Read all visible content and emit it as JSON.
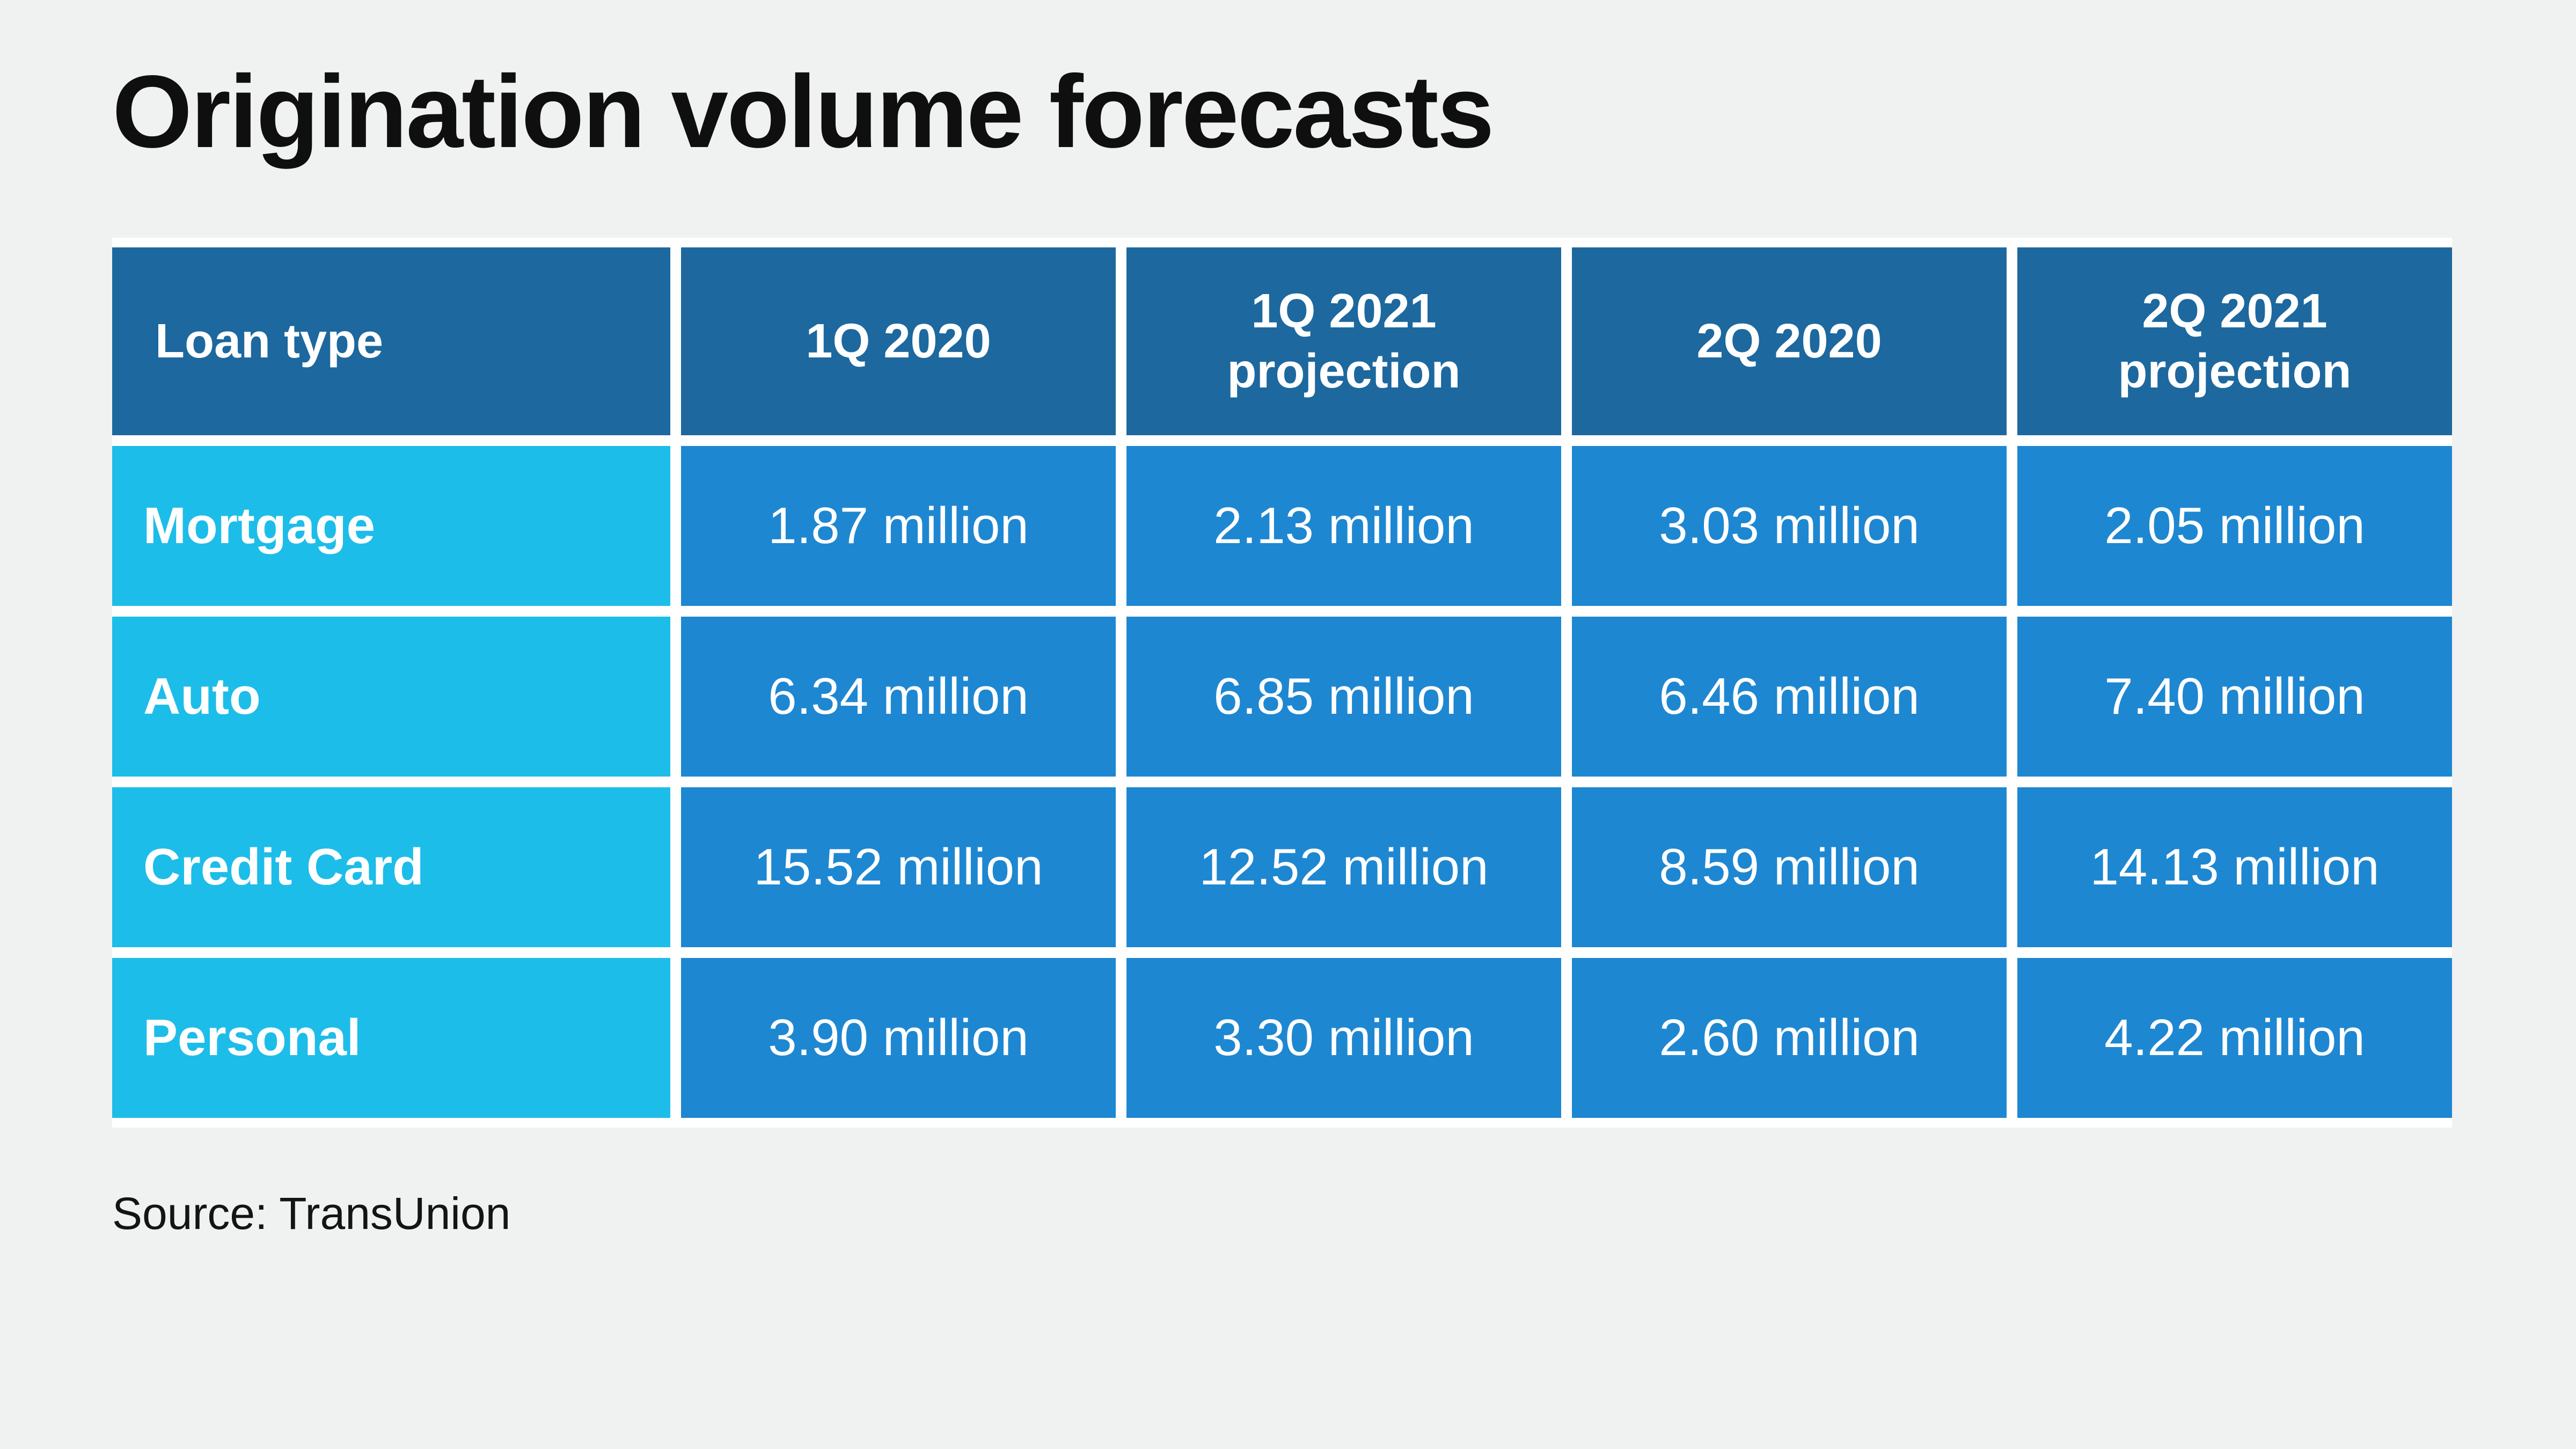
{
  "page": {
    "title": "Origination volume forecasts",
    "source_note": "Source: TransUnion"
  },
  "colors": {
    "background": "#F0F1F1",
    "header_blue": "#1D689E",
    "row_label_cyan": "#1DBDE9",
    "data_cell_blue": "#1E87D1",
    "cell_text": "#FFFFFF",
    "title_text": "#0F0F0F",
    "gutter": "#FFFFFF"
  },
  "chart_data": {
    "type": "table",
    "title": "Origination volume forecasts",
    "columns": [
      "Loan type",
      "1Q 2020",
      "1Q 2021 projection",
      "2Q 2020",
      "2Q 2021 projection"
    ],
    "rows": [
      {
        "label": "Mortgage",
        "values": [
          "1.87 million",
          "2.13 million",
          "3.03 million",
          "2.05 million"
        ]
      },
      {
        "label": "Auto",
        "values": [
          "6.34 million",
          "6.85 million",
          "6.46 million",
          "7.40 million"
        ]
      },
      {
        "label": "Credit Card",
        "values": [
          "15.52 million",
          "12.52 million",
          "8.59 million",
          "14.13 million"
        ]
      },
      {
        "label": "Personal",
        "values": [
          "3.90 million",
          "3.30 million",
          "2.60 million",
          "4.22 million"
        ]
      }
    ],
    "source": "Source: TransUnion",
    "layout": {
      "legend": "none",
      "grid": "white gutters between solid-fill cells",
      "header_row": true,
      "label_column": true
    }
  }
}
